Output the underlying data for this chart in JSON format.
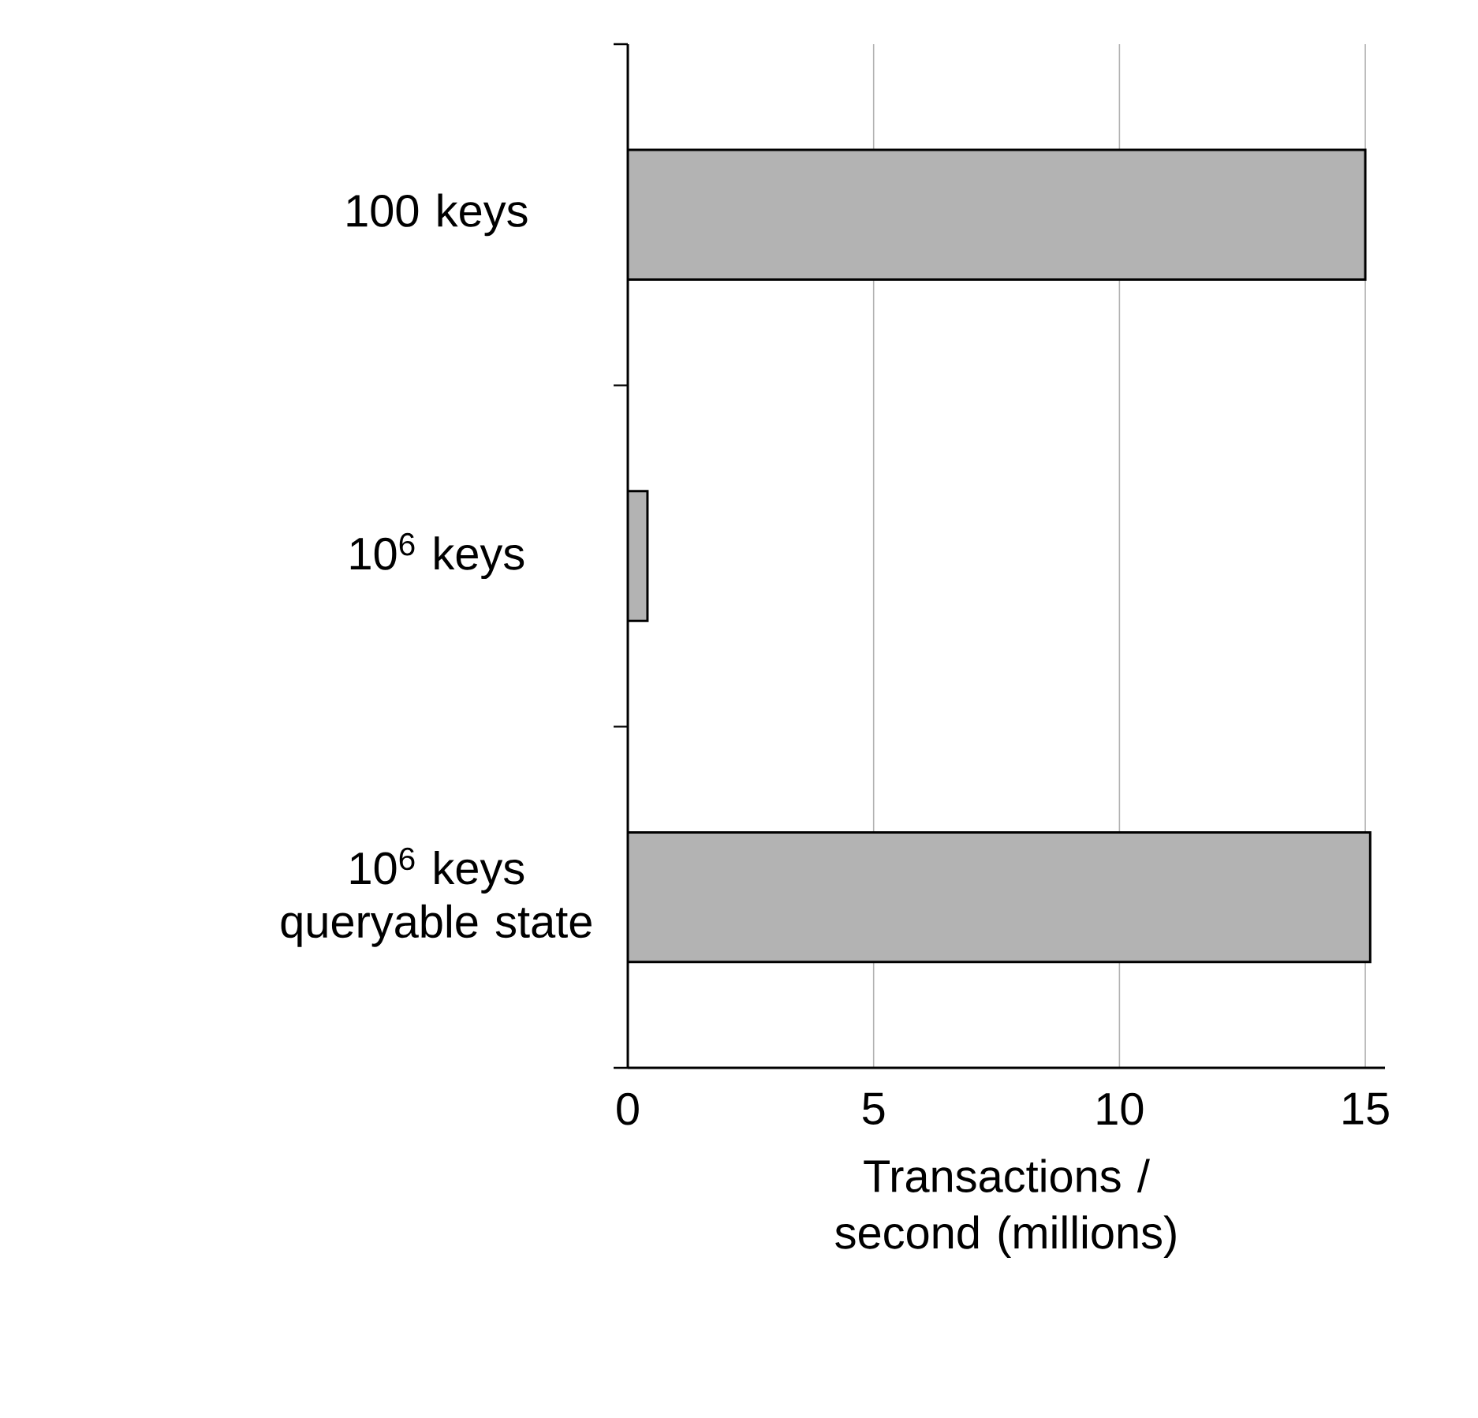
{
  "chart_data": {
    "type": "bar",
    "orientation": "horizontal",
    "categories": [
      "100 keys",
      "10$^{6}$ keys",
      "10$^{6}$ keys queryable state"
    ],
    "values": [
      15.0,
      0.4,
      15.1
    ],
    "color": "#b3b3b3",
    "xlabel": "Transactions / second (millions)",
    "xlim": [
      0,
      15.4
    ],
    "xticks": [
      0,
      5,
      10,
      15
    ],
    "grid": "x"
  }
}
